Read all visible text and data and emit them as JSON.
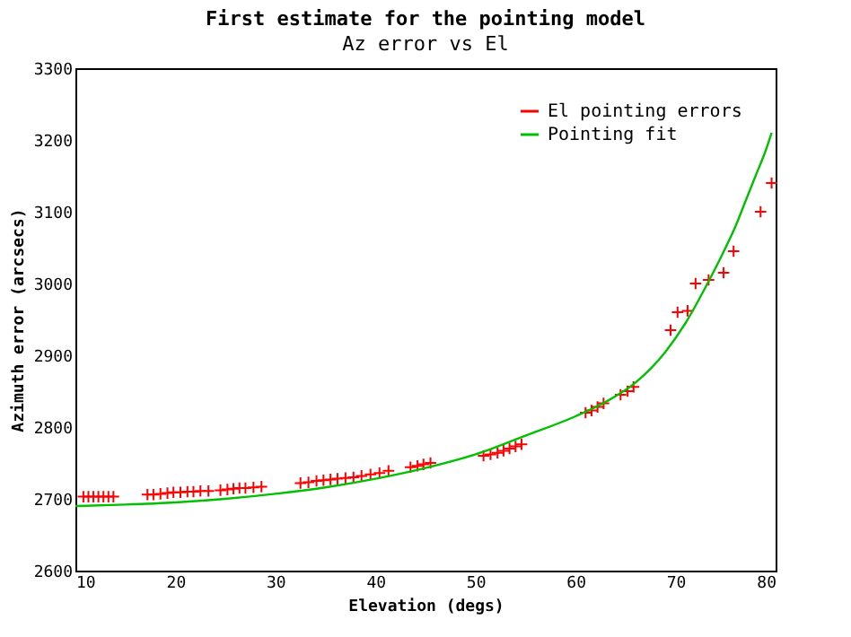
{
  "chart_data": {
    "type": "scatter",
    "title": "First estimate for the pointing model",
    "subtitle": "Az error vs El",
    "xlabel": "Elevation (degs)",
    "ylabel": "Azimuth error (arcsecs)",
    "xlim": [
      10,
      80
    ],
    "xticks": [
      10,
      20,
      30,
      40,
      50,
      60,
      70,
      80
    ],
    "ylim": [
      2600,
      3300
    ],
    "yticks": [
      2600,
      2700,
      2800,
      2900,
      3000,
      3100,
      3200,
      3300
    ],
    "legend": "top right",
    "marker": "cross",
    "grid": false,
    "series": [
      {
        "name": "El pointing errors",
        "color": "#ff0000",
        "x": [
          10.8,
          11.3,
          11.8,
          12.3,
          12.8,
          13.3,
          13.8,
          17.2,
          17.8,
          18.5,
          19.2,
          19.8,
          20.5,
          21.2,
          21.8,
          22.5,
          23.3,
          24.5,
          25.2,
          25.8,
          26.4,
          27.0,
          27.8,
          28.6,
          32.5,
          33.3,
          34.1,
          34.8,
          35.5,
          36.2,
          37.0,
          37.8,
          38.6,
          39.5,
          40.4,
          41.3,
          43.5,
          44.2,
          44.8,
          45.5,
          50.8,
          51.5,
          52.2,
          52.8,
          53.4,
          54.0,
          54.6,
          61.0,
          61.6,
          62.2,
          62.8,
          64.5,
          65.2,
          65.8,
          69.5,
          70.2,
          71.2,
          72.0,
          73.3,
          74.8,
          75.8,
          78.5,
          79.6
        ],
        "values": [
          2703,
          2703,
          2703,
          2703,
          2703,
          2703,
          2703,
          2706,
          2706,
          2707,
          2708,
          2709,
          2709,
          2710,
          2710,
          2711,
          2711,
          2712,
          2713,
          2714,
          2715,
          2715,
          2716,
          2717,
          2722,
          2723,
          2725,
          2726,
          2727,
          2728,
          2729,
          2730,
          2732,
          2734,
          2736,
          2739,
          2744,
          2746,
          2748,
          2750,
          2760,
          2762,
          2764,
          2767,
          2770,
          2773,
          2776,
          2820,
          2823,
          2828,
          2833,
          2845,
          2850,
          2856,
          2935,
          2960,
          2962,
          3000,
          3005,
          3015,
          3045,
          3100,
          3140
        ]
      },
      {
        "name": "Pointing fit",
        "color": "#00c000",
        "type": "line",
        "marker": "none",
        "x": [
          10,
          15,
          20,
          25,
          30,
          35,
          40,
          45,
          50,
          55,
          60,
          63,
          66,
          69,
          71,
          73,
          75,
          76,
          77,
          78,
          79,
          79.6
        ],
        "values": [
          2690,
          2692,
          2695,
          2700,
          2707,
          2716,
          2728,
          2743,
          2762,
          2788,
          2815,
          2835,
          2862,
          2905,
          2945,
          2995,
          3050,
          3080,
          3115,
          3150,
          3185,
          3210
        ]
      }
    ]
  }
}
